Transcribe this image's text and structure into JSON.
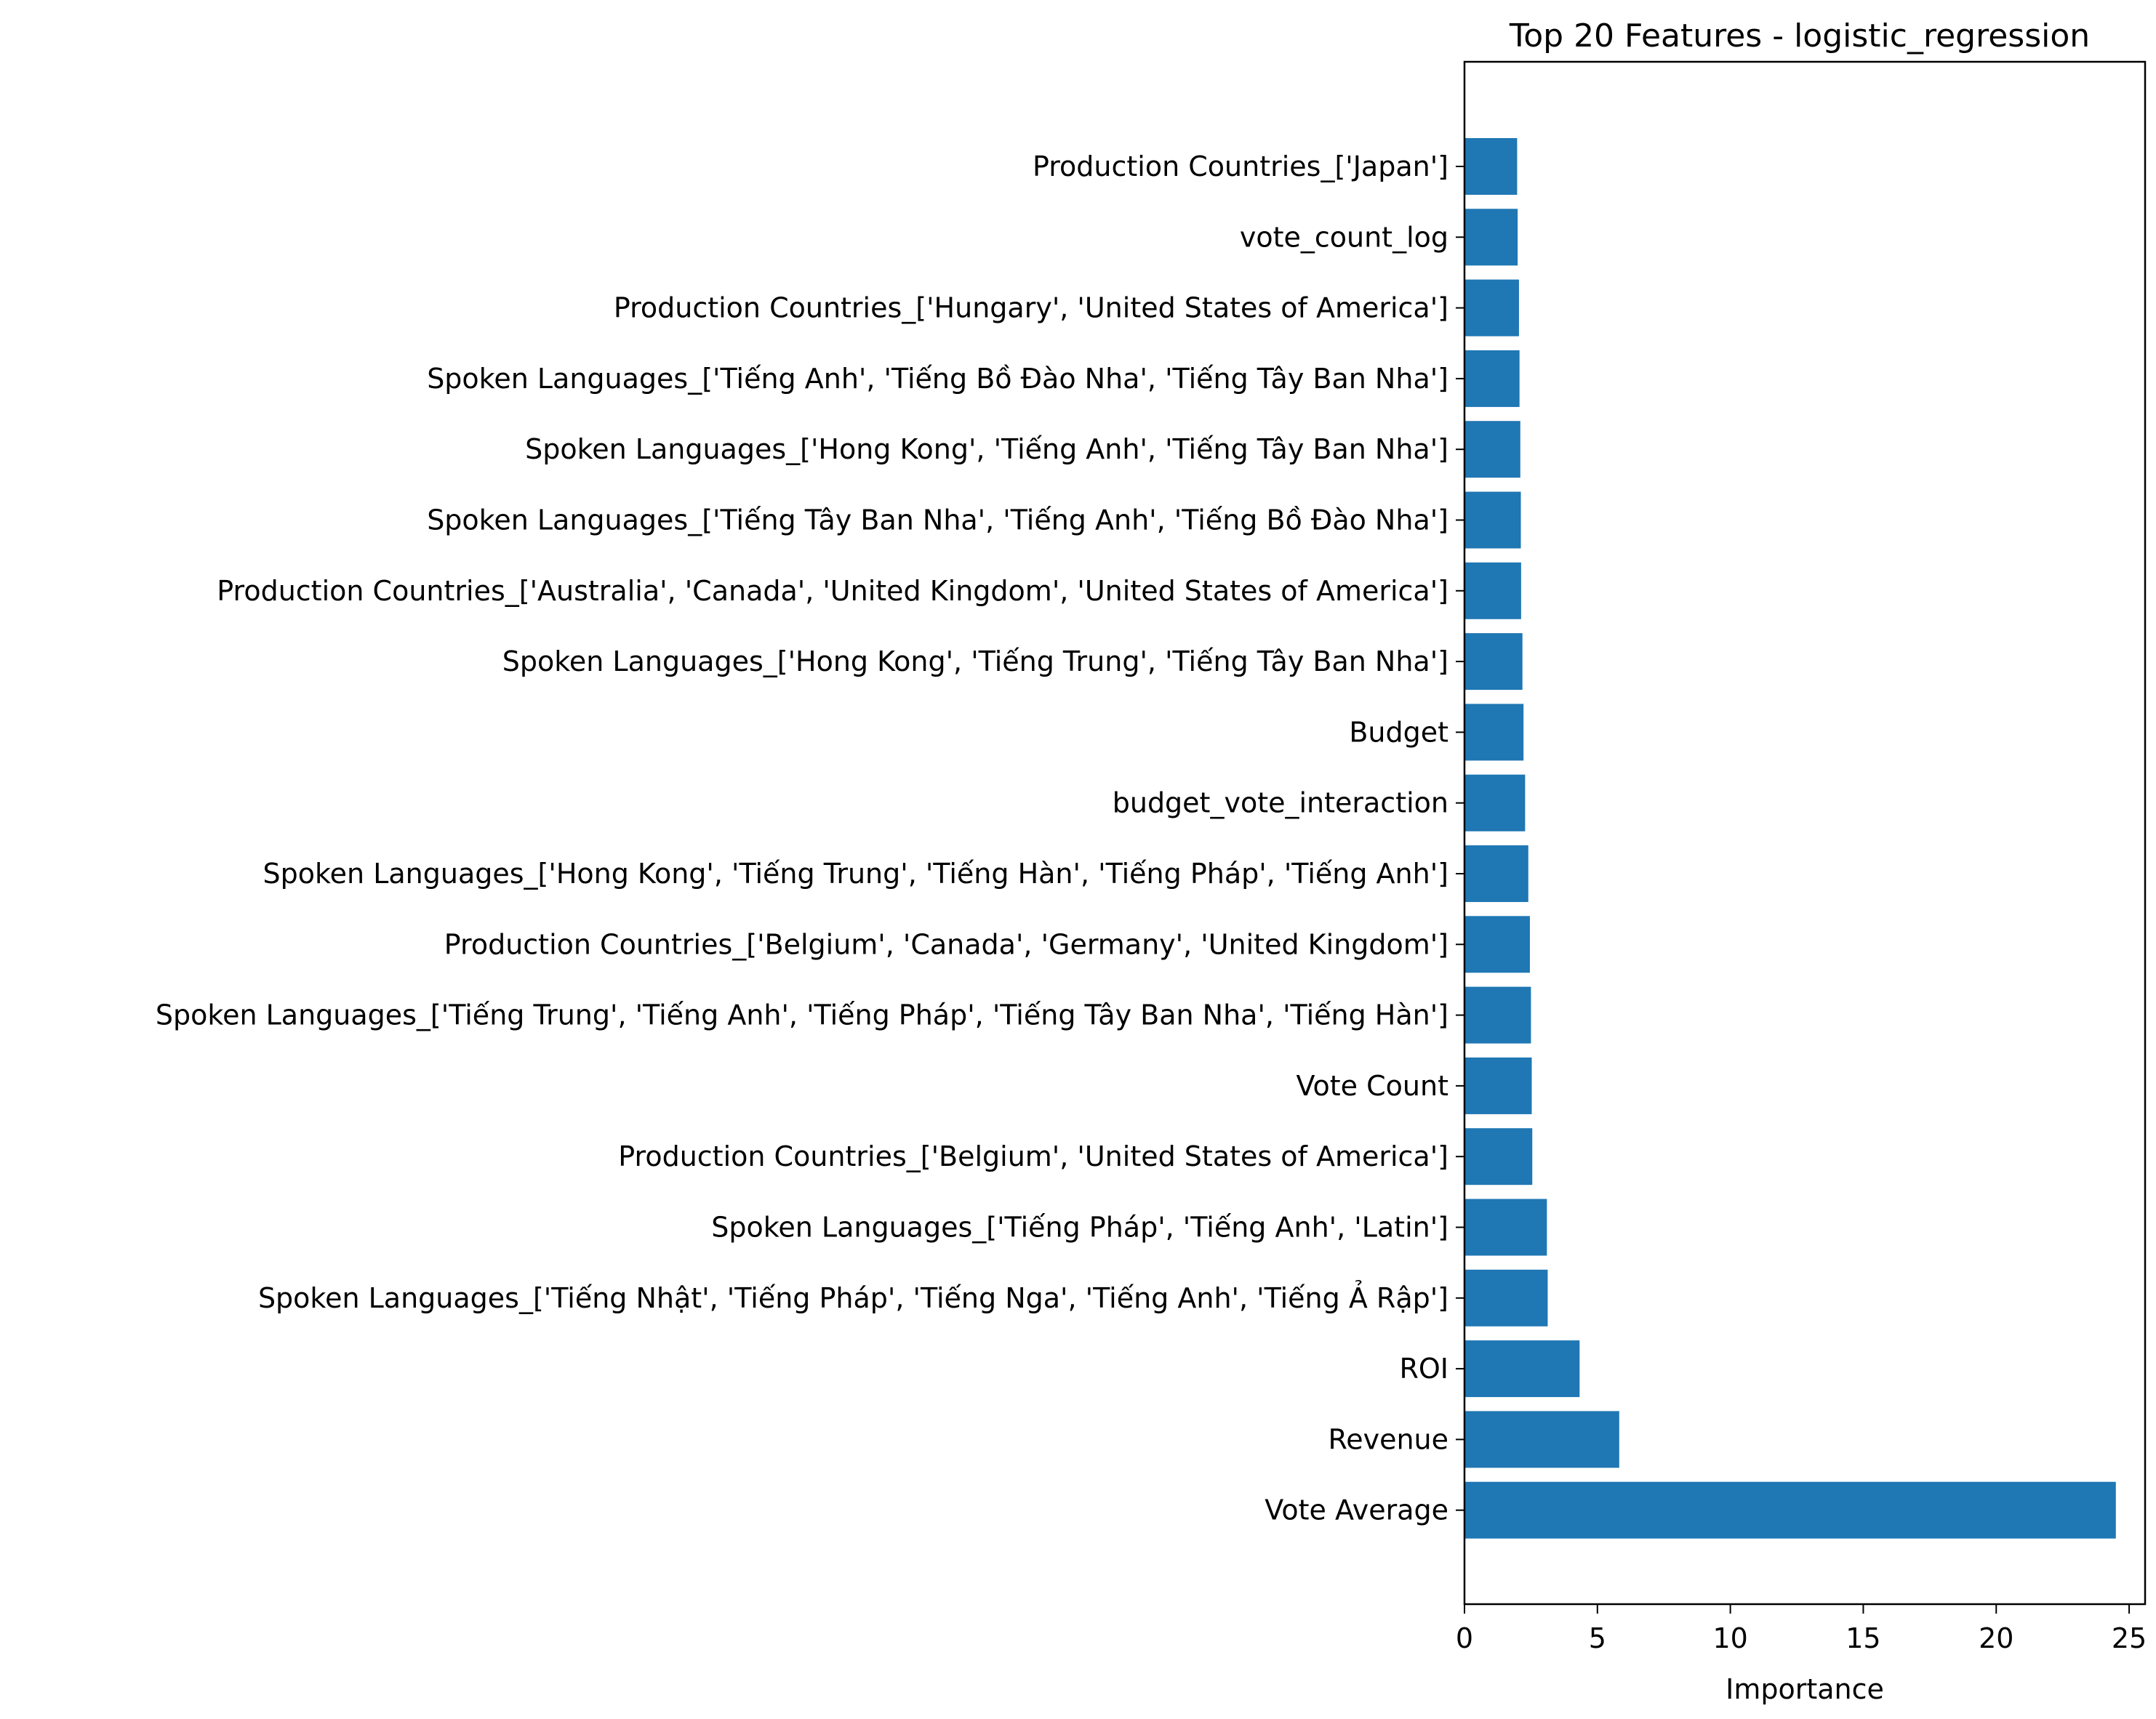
{
  "chart_data": {
    "type": "bar",
    "orientation": "horizontal",
    "title": "Top 20 Features - logistic_regression",
    "xlabel": "Importance",
    "ylabel": "",
    "xlim": [
      0,
      25.6
    ],
    "xticks": [
      0,
      5,
      10,
      15,
      20,
      25
    ],
    "grid": false,
    "legend": "none",
    "bar_color": "#1f77b4",
    "categories": [
      "Production Countries_['Japan']",
      "vote_count_log",
      "Production Countries_['Hungary', 'United States of America']",
      "Spoken Languages_['Tiếng Anh', 'Tiếng Bồ Đào Nha', 'Tiếng Tây Ban Nha']",
      "Spoken Languages_['Hong Kong', 'Tiếng Anh', 'Tiếng Tây Ban Nha']",
      "Spoken Languages_['Tiếng Tây Ban Nha', 'Tiếng Anh', 'Tiếng Bồ Đào Nha']",
      "Production Countries_['Australia', 'Canada', 'United Kingdom', 'United States of America']",
      "Spoken Languages_['Hong Kong', 'Tiếng Trung', 'Tiếng Tây Ban Nha']",
      "Budget",
      "budget_vote_interaction",
      "Spoken Languages_['Hong Kong', 'Tiếng Trung', 'Tiếng Hàn', 'Tiếng Pháp', 'Tiếng Anh']",
      "Production Countries_['Belgium', 'Canada', 'Germany', 'United Kingdom']",
      "Spoken Languages_['Tiếng Trung', 'Tiếng Anh', 'Tiếng Pháp', 'Tiếng Tây Ban Nha', 'Tiếng Hàn']",
      "Vote Count",
      "Production Countries_['Belgium', 'United States of America']",
      "Spoken Languages_['Tiếng Pháp', 'Tiếng Anh', 'Latin']",
      "Spoken Languages_['Tiếng Nhật', 'Tiếng Pháp', 'Tiếng Nga', 'Tiếng Anh', 'Tiếng Ả Rập']",
      "ROI",
      "Revenue",
      "Vote Average"
    ],
    "values": [
      1.98,
      2.0,
      2.05,
      2.07,
      2.1,
      2.12,
      2.13,
      2.18,
      2.22,
      2.28,
      2.4,
      2.46,
      2.5,
      2.53,
      2.55,
      3.1,
      3.13,
      4.33,
      5.82,
      24.5
    ]
  }
}
